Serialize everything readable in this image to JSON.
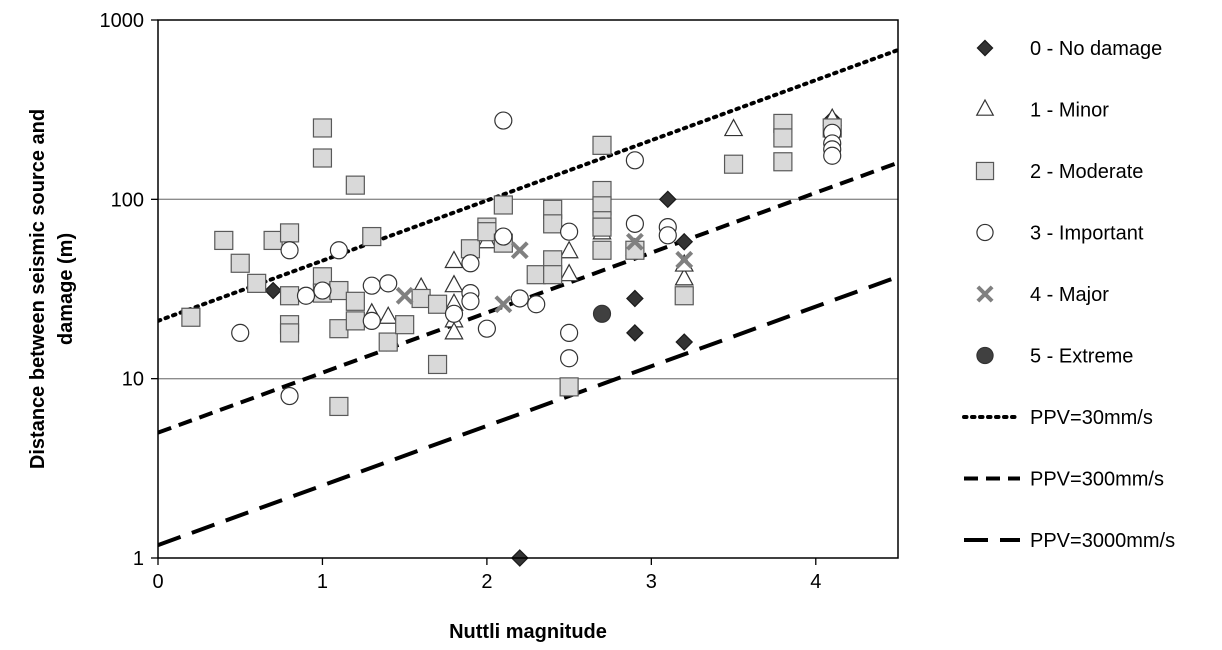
{
  "chart_data": {
    "type": "scatter",
    "title": "",
    "xlabel": "Nuttli magnitude",
    "ylabel_lines": [
      "Distance between seismic source and",
      "damage (m)"
    ],
    "xlim": [
      0,
      4.5
    ],
    "ylim": [
      1,
      1000
    ],
    "yscale": "log",
    "x_ticks": [
      "0",
      "1",
      "2",
      "3",
      "4"
    ],
    "y_ticks": [
      "1",
      "10",
      "100",
      "1000"
    ],
    "grid": "horizontal",
    "legend_position": "right",
    "series": [
      {
        "name": "0 - No damage",
        "marker": "diamond",
        "color": "#333333",
        "points": [
          [
            0.7,
            31
          ],
          [
            2.2,
            1
          ],
          [
            2.9,
            28
          ],
          [
            2.9,
            18
          ],
          [
            3.1,
            100
          ],
          [
            3.2,
            58
          ],
          [
            3.2,
            16
          ],
          [
            4.1,
            280
          ]
        ]
      },
      {
        "name": "1 - Minor",
        "marker": "triangle",
        "color": "#ffffff",
        "points": [
          [
            1.3,
            23
          ],
          [
            1.4,
            22
          ],
          [
            1.6,
            32
          ],
          [
            1.8,
            45
          ],
          [
            1.8,
            33
          ],
          [
            1.8,
            26
          ],
          [
            1.8,
            21
          ],
          [
            1.8,
            18
          ],
          [
            2.0,
            58
          ],
          [
            2.0,
            65
          ],
          [
            2.5,
            51
          ],
          [
            2.5,
            38
          ],
          [
            2.7,
            65
          ],
          [
            2.7,
            73
          ],
          [
            2.9,
            53
          ],
          [
            3.2,
            36
          ],
          [
            3.2,
            43
          ],
          [
            3.5,
            245
          ],
          [
            4.1,
            280
          ]
        ]
      },
      {
        "name": "2 - Moderate",
        "marker": "square",
        "color": "#d9d9d9",
        "points": [
          [
            0.2,
            22
          ],
          [
            0.4,
            59
          ],
          [
            0.5,
            44
          ],
          [
            0.6,
            34
          ],
          [
            0.7,
            59
          ],
          [
            0.8,
            29
          ],
          [
            0.8,
            20
          ],
          [
            0.8,
            18
          ],
          [
            0.8,
            65
          ],
          [
            1.0,
            37
          ],
          [
            1.0,
            30
          ],
          [
            1.0,
            170
          ],
          [
            1.0,
            250
          ],
          [
            1.1,
            19
          ],
          [
            1.1,
            7
          ],
          [
            1.1,
            31
          ],
          [
            1.2,
            120
          ],
          [
            1.2,
            27
          ],
          [
            1.2,
            21
          ],
          [
            1.3,
            62
          ],
          [
            1.4,
            16
          ],
          [
            1.5,
            20
          ],
          [
            1.6,
            28
          ],
          [
            1.7,
            26
          ],
          [
            1.7,
            12
          ],
          [
            1.9,
            53
          ],
          [
            2.0,
            70
          ],
          [
            2.0,
            66
          ],
          [
            2.1,
            93
          ],
          [
            2.1,
            57
          ],
          [
            2.3,
            38
          ],
          [
            2.4,
            88
          ],
          [
            2.4,
            73
          ],
          [
            2.4,
            46
          ],
          [
            2.4,
            38
          ],
          [
            2.5,
            9
          ],
          [
            2.7,
            200
          ],
          [
            2.7,
            112
          ],
          [
            2.7,
            92
          ],
          [
            2.7,
            76
          ],
          [
            2.7,
            70
          ],
          [
            2.7,
            52
          ],
          [
            2.9,
            52
          ],
          [
            3.2,
            29
          ],
          [
            3.5,
            157
          ],
          [
            3.8,
            265
          ],
          [
            3.8,
            220
          ],
          [
            3.8,
            162
          ],
          [
            4.1,
            250
          ]
        ]
      },
      {
        "name": "3 - Important",
        "marker": "circle",
        "color": "#ffffff",
        "points": [
          [
            0.5,
            18
          ],
          [
            0.8,
            52
          ],
          [
            0.8,
            8
          ],
          [
            0.9,
            29
          ],
          [
            1.0,
            31
          ],
          [
            1.1,
            52
          ],
          [
            1.3,
            33
          ],
          [
            1.3,
            21
          ],
          [
            1.4,
            34
          ],
          [
            1.8,
            23
          ],
          [
            1.9,
            44
          ],
          [
            1.9,
            30
          ],
          [
            1.9,
            27
          ],
          [
            2.0,
            19
          ],
          [
            2.1,
            62
          ],
          [
            2.1,
            275
          ],
          [
            2.2,
            28
          ],
          [
            2.3,
            26
          ],
          [
            2.5,
            66
          ],
          [
            2.5,
            18
          ],
          [
            2.5,
            13
          ],
          [
            2.9,
            165
          ],
          [
            2.9,
            73
          ],
          [
            3.1,
            70
          ],
          [
            3.1,
            63
          ],
          [
            4.1,
            235
          ],
          [
            4.1,
            205
          ],
          [
            4.1,
            190
          ],
          [
            4.1,
            175
          ]
        ]
      },
      {
        "name": "4 - Major",
        "marker": "x",
        "color": "#808080",
        "points": [
          [
            1.5,
            29
          ],
          [
            2.1,
            26
          ],
          [
            2.2,
            52
          ],
          [
            2.9,
            58
          ],
          [
            3.2,
            46
          ]
        ]
      },
      {
        "name": "5 - Extreme",
        "marker": "circle",
        "color": "#404040",
        "points": [
          [
            2.7,
            23
          ]
        ]
      }
    ],
    "lines": [
      {
        "name": "PPV=30mm/s",
        "style": "dotted",
        "x": [
          0,
          4.5
        ],
        "y": [
          21,
          680
        ]
      },
      {
        "name": "PPV=300mm/s",
        "style": "short-dash",
        "x": [
          0,
          4.5
        ],
        "y": [
          5,
          160
        ]
      },
      {
        "name": "PPV=3000mm/s",
        "style": "long-dash",
        "x": [
          0,
          4.5
        ],
        "y": [
          1.18,
          37
        ]
      }
    ]
  }
}
